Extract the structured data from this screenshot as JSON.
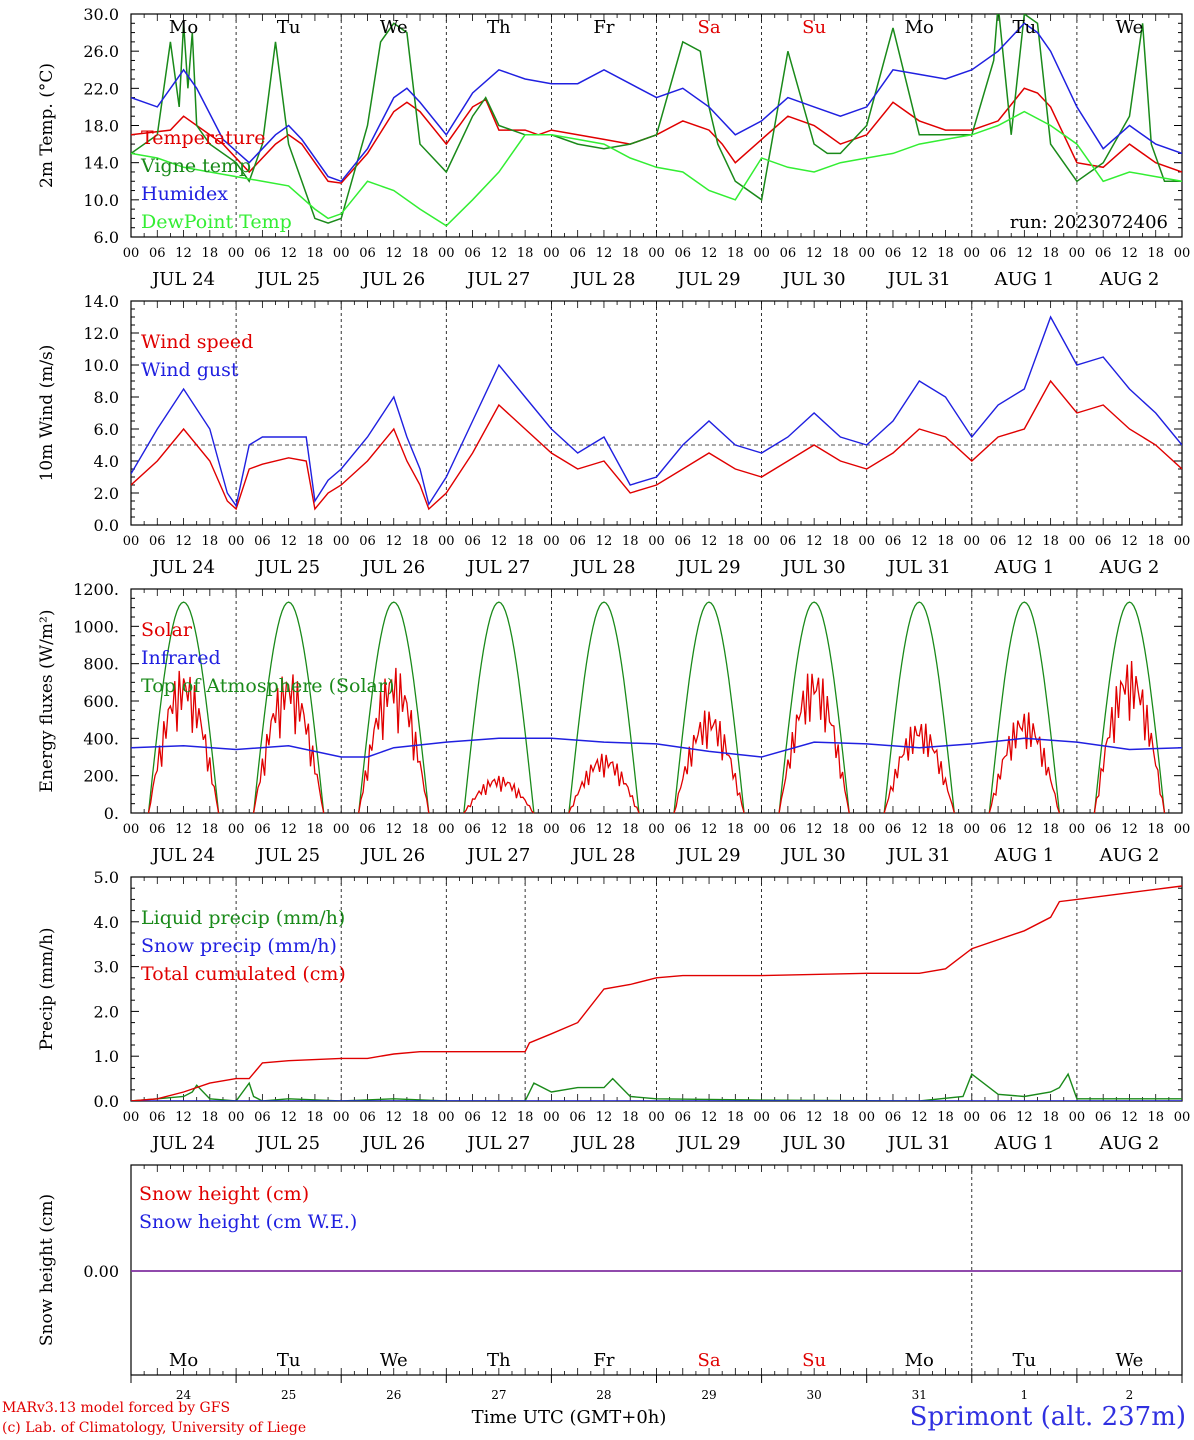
{
  "day_names": [
    {
      "label": "Mo",
      "color": "#000000"
    },
    {
      "label": "Tu",
      "color": "#000000"
    },
    {
      "label": "We",
      "color": "#000000"
    },
    {
      "label": "Th",
      "color": "#000000"
    },
    {
      "label": "Fr",
      "color": "#000000"
    },
    {
      "label": "Sa",
      "color": "#e00000"
    },
    {
      "label": "Su",
      "color": "#e00000"
    },
    {
      "label": "Mo",
      "color": "#000000"
    },
    {
      "label": "Tu",
      "color": "#000000"
    },
    {
      "label": "We",
      "color": "#000000"
    }
  ],
  "date_labels": [
    "JUL 24",
    "JUL 25",
    "JUL 26",
    "JUL 27",
    "JUL 28",
    "JUL 29",
    "JUL 30",
    "JUL 31",
    "AUG  1",
    "AUG  2"
  ],
  "day_numbers": [
    "24",
    "25",
    "26",
    "27",
    "28",
    "29",
    "30",
    "31",
    "1",
    "2"
  ],
  "hour_labels": [
    "00",
    "06",
    "12",
    "18"
  ],
  "hour_end_label": "00",
  "chart_data": [
    {
      "id": "temperature",
      "type": "line",
      "ylabel": "2m Temp. (°C)",
      "ylim": [
        6.0,
        30.0
      ],
      "yticks": [
        "6.0",
        "10.0",
        "14.0",
        "18.0",
        "22.0",
        "26.0",
        "30.0"
      ],
      "run_label": "run: 2023072406",
      "x_unit": "hours since JUL 24 00 UTC",
      "series": [
        {
          "name": "Temperature",
          "color": "#e00000",
          "x": [
            0,
            9,
            12,
            15,
            21,
            27,
            33,
            36,
            39,
            45,
            48,
            54,
            60,
            63,
            66,
            72,
            78,
            81,
            84,
            90,
            93,
            96,
            102,
            108,
            114,
            120,
            126,
            132,
            135,
            138,
            144,
            150,
            156,
            159,
            162,
            168,
            174,
            180,
            186,
            192,
            198,
            204,
            207,
            210,
            216,
            222,
            228,
            234,
            240
          ],
          "y": [
            17.0,
            17.5,
            19.0,
            18.0,
            16.0,
            13.0,
            16.0,
            17.0,
            16.0,
            12.0,
            11.8,
            15.0,
            19.5,
            20.5,
            19.5,
            16.0,
            20.0,
            20.8,
            17.5,
            17.5,
            17.0,
            17.5,
            17.0,
            16.5,
            16.0,
            17.0,
            18.5,
            17.5,
            16.0,
            14.0,
            16.5,
            19.0,
            18.0,
            17.0,
            16.0,
            17.0,
            20.5,
            18.5,
            17.5,
            17.5,
            18.5,
            22.0,
            21.5,
            20.0,
            14.0,
            13.5,
            16.0,
            14.0,
            13.0
          ]
        },
        {
          "name": "Vigne temp",
          "color": "#1a8a1a",
          "x": [
            0,
            6,
            9,
            11,
            12,
            13,
            14,
            15,
            18,
            24,
            27,
            30,
            33,
            36,
            39,
            42,
            45,
            48,
            54,
            57,
            60,
            63,
            66,
            72,
            78,
            81,
            84,
            90,
            96,
            102,
            108,
            114,
            120,
            126,
            130,
            132,
            134,
            138,
            144,
            150,
            156,
            159,
            162,
            168,
            174,
            180,
            186,
            192,
            197,
            198,
            201,
            204,
            207,
            210,
            216,
            222,
            228,
            231,
            233,
            236,
            240
          ],
          "y": [
            15.0,
            17.0,
            27.0,
            20.0,
            29.0,
            22.0,
            28.0,
            18.0,
            16.0,
            14.0,
            12.0,
            16.0,
            27.0,
            16.0,
            12.0,
            8.0,
            7.5,
            8.0,
            18.0,
            27.0,
            29.0,
            28.0,
            16.0,
            13.0,
            19.0,
            21.0,
            18.0,
            17.0,
            17.0,
            16.0,
            15.5,
            16.0,
            17.0,
            27.0,
            26.0,
            20.0,
            16.0,
            12.0,
            10.0,
            26.0,
            16.0,
            15.0,
            15.0,
            18.0,
            28.5,
            17.0,
            17.0,
            17.0,
            25.0,
            31.0,
            17.0,
            30.0,
            29.0,
            16.0,
            12.0,
            14.0,
            19.0,
            29.0,
            16.0,
            12.0,
            12.0
          ]
        },
        {
          "name": "Humidex",
          "color": "#2020e0",
          "x": [
            0,
            6,
            12,
            15,
            21,
            27,
            33,
            36,
            39,
            45,
            48,
            54,
            60,
            63,
            66,
            72,
            78,
            84,
            90,
            96,
            102,
            108,
            114,
            120,
            126,
            132,
            138,
            144,
            150,
            156,
            162,
            168,
            174,
            180,
            186,
            192,
            198,
            204,
            207,
            210,
            216,
            222,
            228,
            234,
            240
          ],
          "y": [
            21.0,
            20.0,
            24.0,
            22.0,
            16.5,
            14.0,
            17.0,
            18.0,
            16.5,
            12.5,
            12.0,
            15.5,
            21.0,
            22.0,
            20.5,
            17.0,
            21.5,
            24.0,
            23.0,
            22.5,
            22.5,
            24.0,
            22.5,
            21.0,
            22.0,
            20.0,
            17.0,
            18.5,
            21.0,
            20.0,
            19.0,
            20.0,
            24.0,
            23.5,
            23.0,
            24.0,
            26.0,
            29.0,
            28.0,
            26.0,
            20.0,
            15.5,
            18.0,
            16.0,
            15.0
          ]
        },
        {
          "name": "DewPoint Temp",
          "color": "#33ee33",
          "x": [
            0,
            6,
            12,
            18,
            24,
            30,
            36,
            42,
            45,
            48,
            54,
            60,
            66,
            72,
            78,
            84,
            90,
            96,
            102,
            108,
            114,
            120,
            126,
            132,
            138,
            144,
            150,
            156,
            162,
            168,
            174,
            180,
            186,
            192,
            198,
            204,
            210,
            216,
            222,
            228,
            234,
            240
          ],
          "y": [
            15.0,
            14.5,
            13.5,
            13.0,
            12.5,
            12.0,
            11.5,
            9.0,
            8.0,
            8.5,
            12.0,
            11.0,
            9.0,
            7.2,
            10.0,
            13.0,
            17.0,
            17.0,
            16.5,
            16.0,
            14.5,
            13.5,
            13.0,
            11.0,
            10.0,
            14.5,
            13.5,
            13.0,
            14.0,
            14.5,
            15.0,
            16.0,
            16.5,
            17.0,
            18.0,
            19.5,
            18.0,
            16.0,
            12.0,
            13.0,
            12.5,
            12.0
          ]
        }
      ]
    },
    {
      "id": "wind",
      "type": "line",
      "ylabel": "10m Wind (m/s)",
      "ylim": [
        0.0,
        14.0
      ],
      "yticks": [
        "0.0",
        "2.0",
        "4.0",
        "6.0",
        "8.0",
        "10.0",
        "12.0",
        "14.0"
      ],
      "reference_line": 5.0,
      "x_unit": "hours since JUL 24 00 UTC",
      "series": [
        {
          "name": "Wind speed",
          "color": "#e00000",
          "x": [
            0,
            6,
            12,
            18,
            22,
            24,
            27,
            30,
            36,
            40,
            42,
            45,
            48,
            54,
            60,
            63,
            66,
            68,
            72,
            78,
            84,
            90,
            96,
            102,
            108,
            114,
            120,
            126,
            132,
            138,
            144,
            150,
            156,
            162,
            168,
            174,
            180,
            186,
            192,
            198,
            204,
            210,
            216,
            222,
            228,
            234,
            240
          ],
          "y": [
            2.5,
            4.0,
            6.0,
            4.0,
            1.5,
            1.0,
            3.5,
            3.8,
            4.2,
            4.0,
            1.0,
            2.0,
            2.5,
            4.0,
            6.0,
            4.0,
            2.5,
            1.0,
            2.0,
            4.5,
            7.5,
            6.0,
            4.5,
            3.5,
            4.0,
            2.0,
            2.5,
            3.5,
            4.5,
            3.5,
            3.0,
            4.0,
            5.0,
            4.0,
            3.5,
            4.5,
            6.0,
            5.5,
            4.0,
            5.5,
            6.0,
            9.0,
            7.0,
            7.5,
            6.0,
            5.0,
            3.5
          ]
        },
        {
          "name": "Wind gust",
          "color": "#2020e0",
          "x": [
            0,
            6,
            12,
            18,
            22,
            24,
            27,
            30,
            36,
            40,
            42,
            45,
            48,
            54,
            60,
            63,
            66,
            68,
            72,
            78,
            84,
            90,
            96,
            102,
            108,
            114,
            120,
            126,
            132,
            138,
            144,
            150,
            156,
            162,
            168,
            174,
            180,
            186,
            192,
            198,
            204,
            210,
            216,
            222,
            228,
            234,
            240
          ],
          "y": [
            3.2,
            6.0,
            8.5,
            6.0,
            2.0,
            1.2,
            5.0,
            5.5,
            5.5,
            5.5,
            1.5,
            2.8,
            3.5,
            5.5,
            8.0,
            5.5,
            3.5,
            1.3,
            3.0,
            6.5,
            10.0,
            8.0,
            6.0,
            4.5,
            5.5,
            2.5,
            3.0,
            5.0,
            6.5,
            5.0,
            4.5,
            5.5,
            7.0,
            5.5,
            5.0,
            6.5,
            9.0,
            8.0,
            5.5,
            7.5,
            8.5,
            13.0,
            10.0,
            10.5,
            8.5,
            7.0,
            5.0
          ]
        }
      ]
    },
    {
      "id": "energy",
      "type": "line",
      "ylabel": "Energy fluxes (W/m²)",
      "ylim": [
        0,
        1200
      ],
      "yticks": [
        "0.",
        "200.",
        "400.",
        "600.",
        "800.",
        "1000.",
        "1200."
      ],
      "x_unit": "hours since JUL 24 00 UTC",
      "solar_peaks": [
        780,
        770,
        790,
        200,
        320,
        560,
        780,
        500,
        550,
        820
      ],
      "toa_peak": 1130,
      "series": [
        {
          "name": "Solar",
          "color": "#e00000"
        },
        {
          "name": "Infrared",
          "color": "#2020e0",
          "x": [
            0,
            12,
            24,
            36,
            48,
            54,
            60,
            72,
            84,
            96,
            108,
            120,
            132,
            144,
            156,
            168,
            180,
            192,
            204,
            216,
            228,
            240
          ],
          "y": [
            350,
            360,
            340,
            360,
            300,
            300,
            350,
            380,
            400,
            400,
            380,
            370,
            330,
            300,
            380,
            370,
            350,
            370,
            400,
            380,
            340,
            350
          ]
        },
        {
          "name": "Top of Atmosphere (Solar)",
          "color": "#1a8a1a"
        }
      ]
    },
    {
      "id": "precip",
      "type": "line",
      "ylabel": "Precip (mm/h)",
      "ylim": [
        0.0,
        5.0
      ],
      "yticks": [
        "0.0",
        "1.0",
        "2.0",
        "3.0",
        "4.0",
        "5.0"
      ],
      "x_unit": "hours since JUL 24 00 UTC",
      "series": [
        {
          "name": "Liquid precip (mm/h)",
          "color": "#1a8a1a",
          "x": [
            0,
            6,
            12,
            14,
            15,
            18,
            24,
            27,
            28,
            30,
            36,
            48,
            60,
            72,
            84,
            90,
            92,
            96,
            102,
            108,
            110,
            114,
            120,
            144,
            180,
            190,
            192,
            198,
            204,
            210,
            212,
            214,
            216,
            240
          ],
          "y": [
            0.0,
            0.05,
            0.1,
            0.2,
            0.35,
            0.05,
            0.0,
            0.4,
            0.1,
            0.0,
            0.05,
            0.0,
            0.05,
            0.0,
            0.0,
            0.0,
            0.4,
            0.2,
            0.3,
            0.3,
            0.5,
            0.1,
            0.05,
            0.02,
            0.0,
            0.1,
            0.6,
            0.15,
            0.1,
            0.2,
            0.3,
            0.6,
            0.05,
            0.05
          ]
        },
        {
          "name": "Snow precip (mm/h)",
          "color": "#2020e0",
          "x": [
            0,
            240
          ],
          "y": [
            0,
            0
          ]
        },
        {
          "name": "Total cumulated (cm)",
          "color": "#e00000",
          "x": [
            0,
            6,
            12,
            18,
            24,
            27,
            30,
            36,
            48,
            54,
            60,
            66,
            72,
            84,
            90,
            91,
            96,
            102,
            108,
            114,
            120,
            126,
            132,
            144,
            168,
            180,
            186,
            188,
            192,
            204,
            210,
            212,
            216,
            228,
            240
          ],
          "y": [
            0.0,
            0.05,
            0.2,
            0.4,
            0.5,
            0.5,
            0.85,
            0.9,
            0.95,
            0.95,
            1.05,
            1.1,
            1.1,
            1.1,
            1.1,
            1.3,
            1.5,
            1.75,
            2.5,
            2.6,
            2.75,
            2.8,
            2.8,
            2.8,
            2.85,
            2.85,
            2.95,
            3.1,
            3.4,
            3.8,
            4.1,
            4.45,
            4.5,
            4.65,
            4.8
          ]
        }
      ]
    },
    {
      "id": "snow",
      "type": "line",
      "ylabel": "Snow height (cm)",
      "yticks": [
        "0.00"
      ],
      "series": [
        {
          "name": "Snow height (cm)",
          "color": "#e00000",
          "x": [
            0,
            240
          ],
          "y": [
            0,
            0
          ]
        },
        {
          "name": "Snow height (cm W.E.)",
          "color": "#2020e0",
          "x": [
            0,
            240
          ],
          "y": [
            0,
            0
          ]
        }
      ]
    }
  ],
  "xlabel": "Time UTC (GMT+0h)",
  "footer": {
    "model": "MARv3.13 model forced by GFS",
    "credit": "(c) Lab. of Climatology, University of Liege",
    "site": "Sprimont (alt. 237m)"
  },
  "colors": {
    "red": "#e00000",
    "green": "#1a8a1a",
    "blue": "#2020e0",
    "lightgreen": "#33ee33",
    "purple": "#8030a0"
  }
}
